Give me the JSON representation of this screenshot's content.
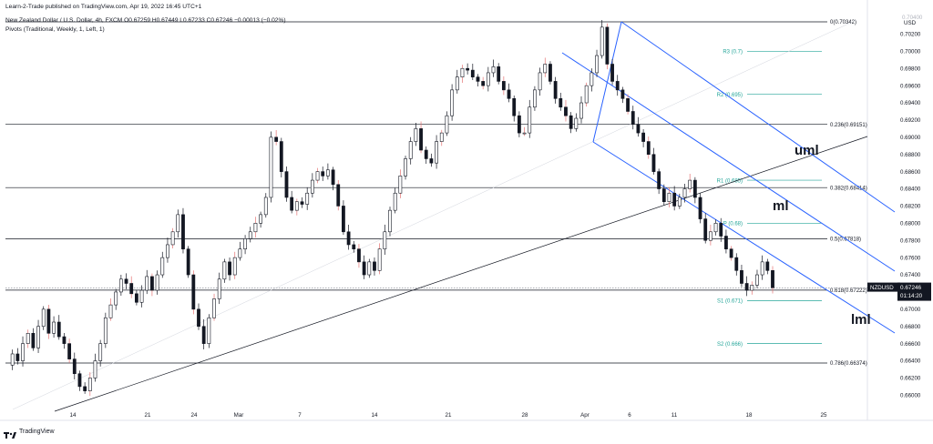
{
  "header": {
    "published_line": "Learn-2-Trade published on TradingView.com, Apr 19, 2022 16:45 UTC+1",
    "symbol_line": "New Zealand Dollar / U.S. Dollar, 4h, FXCM  O0.67259  H0.67449  L0.67233  C0.67246  −0.00013 (−0.02%)",
    "indicator_line": "Pivots (Traditional, Weekly, 1, Left, 1)"
  },
  "brand": {
    "name": "TradingView"
  },
  "colors": {
    "background": "#ffffff",
    "candle_up": "#131722",
    "candle_wick_red": "#e57373",
    "pitchfork": "#2962ff",
    "pivot": "#26a69a",
    "fib": "#131722",
    "price_label_bg": "#131722"
  },
  "chart_data": {
    "type": "candlestick",
    "currency": "USD",
    "ylim": [
      0.6592,
      0.705
    ],
    "x_ticks": [
      "14",
      "21",
      "24",
      "Mar",
      "7",
      "14",
      "21",
      "28",
      "Apr",
      "6",
      "11",
      "18",
      "25"
    ],
    "y_ticks": [
      "0.70200",
      "0.70000",
      "0.69800",
      "0.69600",
      "0.69400",
      "0.69200",
      "0.69000",
      "0.68800",
      "0.68600",
      "0.68400",
      "0.68200",
      "0.68000",
      "0.67800",
      "0.67600",
      "0.67400",
      "0.67000",
      "0.66800",
      "0.66600",
      "0.66400",
      "0.66200",
      "0.66000"
    ],
    "top_tick": "0.70400",
    "current_price": {
      "symbol": "NZDUSD",
      "value": "0.67246",
      "countdown": "01:14:20",
      "price": 0.67246
    },
    "fib_levels": [
      {
        "label": "0(0.70342)",
        "price": 0.70342
      },
      {
        "label": "0.236(0.69151)",
        "price": 0.69151
      },
      {
        "label": "0.382(0.68414)",
        "price": 0.68414
      },
      {
        "label": "0.5(0.67818)",
        "price": 0.67818
      },
      {
        "label": "0.618(0.67222)",
        "price": 0.67222
      },
      {
        "label": "0.786(0.66374)",
        "price": 0.66374
      }
    ],
    "pivots": [
      {
        "label": "R3 (0.7)",
        "price": 0.7
      },
      {
        "label": "R2 (0.695)",
        "price": 0.695
      },
      {
        "label": "R1 (0.685)",
        "price": 0.685
      },
      {
        "label": "P (0.68)",
        "price": 0.68
      },
      {
        "label": "S1 (0.671)",
        "price": 0.671
      },
      {
        "label": "S2 (0.666)",
        "price": 0.666
      }
    ],
    "annotations": [
      "uml",
      "ml",
      "lml"
    ],
    "price_path": [
      0.6635,
      0.6648,
      0.664,
      0.666,
      0.6672,
      0.6655,
      0.668,
      0.67,
      0.6672,
      0.6685,
      0.6668,
      0.666,
      0.6642,
      0.6625,
      0.661,
      0.6605,
      0.662,
      0.664,
      0.666,
      0.669,
      0.6705,
      0.672,
      0.6735,
      0.673,
      0.6718,
      0.6708,
      0.6722,
      0.6738,
      0.6722,
      0.674,
      0.676,
      0.6775,
      0.679,
      0.681,
      0.677,
      0.674,
      0.67,
      0.668,
      0.666,
      0.669,
      0.6712,
      0.6735,
      0.6755,
      0.674,
      0.676,
      0.677,
      0.6782,
      0.679,
      0.68,
      0.681,
      0.683,
      0.69,
      0.6895,
      0.686,
      0.683,
      0.6815,
      0.6825,
      0.6822,
      0.6835,
      0.685,
      0.686,
      0.6855,
      0.6862,
      0.6845,
      0.682,
      0.679,
      0.6775,
      0.677,
      0.6755,
      0.674,
      0.6755,
      0.6745,
      0.677,
      0.679,
      0.6815,
      0.6835,
      0.6855,
      0.6875,
      0.6895,
      0.691,
      0.6885,
      0.6875,
      0.687,
      0.6895,
      0.6905,
      0.6925,
      0.6955,
      0.697,
      0.698,
      0.6978,
      0.697,
      0.6965,
      0.696,
      0.6975,
      0.6982,
      0.6965,
      0.6955,
      0.6945,
      0.6925,
      0.6905,
      0.6905,
      0.6935,
      0.6955,
      0.6975,
      0.6985,
      0.6965,
      0.6945,
      0.6935,
      0.6925,
      0.691,
      0.6922,
      0.694,
      0.696,
      0.6975,
      0.6995,
      0.7028,
      0.6985,
      0.6965,
      0.6955,
      0.6945,
      0.693,
      0.6915,
      0.6905,
      0.6895,
      0.688,
      0.686,
      0.684,
      0.6825,
      0.6835,
      0.682,
      0.683,
      0.684,
      0.685,
      0.683,
      0.6805,
      0.678,
      0.679,
      0.68,
      0.6785,
      0.677,
      0.676,
      0.6745,
      0.673,
      0.6722,
      0.6728,
      0.674,
      0.6755,
      0.6745,
      0.6725
    ]
  }
}
